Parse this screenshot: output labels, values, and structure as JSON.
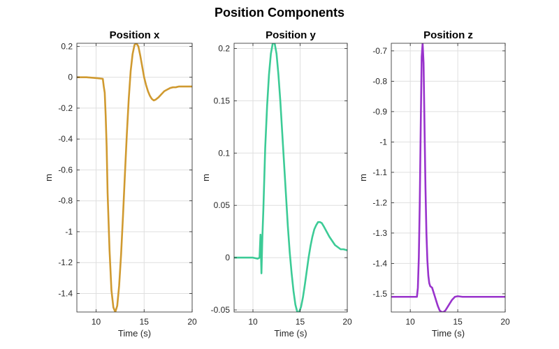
{
  "figure": {
    "title": "Position Components"
  },
  "chart_data": [
    {
      "type": "line",
      "title": "Position x",
      "xlabel": "Time (s)",
      "ylabel": "m",
      "xlim": [
        8,
        20
      ],
      "ylim": [
        -1.52,
        0.22
      ],
      "xticks": [
        10,
        15,
        20
      ],
      "yticks": [
        0.2,
        0,
        -0.2,
        -0.4,
        -0.6,
        -0.8,
        -1,
        -1.2,
        -1.4
      ],
      "ytick_labels": [
        "0.2",
        "0",
        "-0.2",
        "-0.4",
        "-0.6",
        "-0.8",
        "-1",
        "-1.2",
        "-1.4"
      ],
      "grid": true,
      "color": "#D09A30",
      "series": [
        {
          "x": [
            8,
            9,
            10,
            10.7,
            10.8,
            10.9,
            11.0,
            11.1,
            11.2,
            11.4,
            11.6,
            11.8,
            12.0,
            12.2,
            12.4,
            12.6,
            12.8,
            13.0,
            13.2,
            13.4,
            13.6,
            13.8,
            14.0,
            14.2,
            14.4,
            14.6,
            14.8,
            15.0,
            15.2,
            15.4,
            15.6,
            15.8,
            16.0,
            16.2,
            16.5,
            16.8,
            17.1,
            17.4,
            17.7,
            18.0,
            18.3,
            18.6,
            19.0,
            19.5,
            20
          ],
          "y": [
            0.0,
            0.0,
            -0.005,
            -0.01,
            -0.06,
            -0.1,
            -0.25,
            -0.45,
            -0.75,
            -1.12,
            -1.38,
            -1.49,
            -1.52,
            -1.48,
            -1.35,
            -1.15,
            -0.9,
            -0.63,
            -0.37,
            -0.14,
            0.04,
            0.15,
            0.21,
            0.22,
            0.2,
            0.14,
            0.07,
            0.0,
            -0.05,
            -0.09,
            -0.12,
            -0.14,
            -0.15,
            -0.145,
            -0.13,
            -0.11,
            -0.09,
            -0.08,
            -0.07,
            -0.065,
            -0.065,
            -0.06,
            -0.06,
            -0.06,
            -0.06
          ]
        }
      ]
    },
    {
      "type": "line",
      "title": "Position y",
      "xlabel": "Time (s)",
      "ylabel": "m",
      "xlim": [
        8,
        20
      ],
      "ylim": [
        -0.052,
        0.205
      ],
      "xticks": [
        10,
        15,
        20
      ],
      "yticks": [
        0.2,
        0.15,
        0.1,
        0.05,
        0,
        -0.05
      ],
      "ytick_labels": [
        "0.2",
        "0.15",
        "0.1",
        "0.05",
        "0",
        "-0.05"
      ],
      "grid": true,
      "color": "#3CCB96",
      "series": [
        {
          "x": [
            8,
            9,
            10,
            10.5,
            10.7,
            10.8,
            10.9,
            11.0,
            11.1,
            11.2,
            11.3,
            11.5,
            11.7,
            11.9,
            12.1,
            12.3,
            12.5,
            12.7,
            12.9,
            13.1,
            13.3,
            13.5,
            13.7,
            13.9,
            14.1,
            14.3,
            14.5,
            14.7,
            14.9,
            15.1,
            15.3,
            15.5,
            15.7,
            15.9,
            16.1,
            16.3,
            16.5,
            16.7,
            16.9,
            17.1,
            17.3,
            17.5,
            17.8,
            18.1,
            18.4,
            18.7,
            19.0,
            19.3,
            19.6,
            20
          ],
          "y": [
            0.0,
            0.0,
            0.0,
            -0.001,
            0.0,
            0.022,
            -0.015,
            0.02,
            0.045,
            0.075,
            0.105,
            0.145,
            0.175,
            0.195,
            0.205,
            0.205,
            0.195,
            0.175,
            0.15,
            0.12,
            0.09,
            0.06,
            0.03,
            0.005,
            -0.015,
            -0.032,
            -0.045,
            -0.052,
            -0.052,
            -0.047,
            -0.038,
            -0.026,
            -0.013,
            0.0,
            0.011,
            0.02,
            0.027,
            0.031,
            0.034,
            0.034,
            0.033,
            0.03,
            0.025,
            0.02,
            0.016,
            0.012,
            0.01,
            0.008,
            0.008,
            0.007
          ]
        }
      ]
    },
    {
      "type": "line",
      "title": "Position z",
      "xlabel": "Time (s)",
      "ylabel": "m",
      "xlim": [
        8,
        20
      ],
      "ylim": [
        -1.56,
        -0.675
      ],
      "xticks": [
        10,
        15,
        20
      ],
      "yticks": [
        -0.7,
        -0.8,
        -0.9,
        -1,
        -1.1,
        -1.2,
        -1.3,
        -1.4,
        -1.5
      ],
      "ytick_labels": [
        "-0.7",
        "-0.8",
        "-0.9",
        "-1",
        "-1.1",
        "-1.2",
        "-1.3",
        "-1.4",
        "-1.5"
      ],
      "grid": true,
      "color": "#9933CC",
      "series": [
        {
          "x": [
            8,
            9,
            10,
            10.7,
            10.8,
            10.9,
            11.0,
            11.1,
            11.2,
            11.3,
            11.4,
            11.5,
            11.6,
            11.7,
            11.8,
            11.9,
            12.0,
            12.1,
            12.3,
            12.5,
            12.7,
            12.9,
            13.1,
            13.3,
            13.5,
            13.7,
            13.9,
            14.1,
            14.4,
            14.7,
            15.0,
            15.5,
            16,
            17,
            18,
            19,
            20
          ],
          "y": [
            -1.51,
            -1.51,
            -1.51,
            -1.51,
            -1.48,
            -1.38,
            -1.2,
            -0.95,
            -0.72,
            -0.675,
            -0.74,
            -0.95,
            -1.15,
            -1.3,
            -1.39,
            -1.44,
            -1.465,
            -1.475,
            -1.48,
            -1.5,
            -1.52,
            -1.54,
            -1.555,
            -1.56,
            -1.56,
            -1.555,
            -1.545,
            -1.535,
            -1.52,
            -1.51,
            -1.508,
            -1.51,
            -1.51,
            -1.51,
            -1.51,
            -1.51,
            -1.51
          ]
        }
      ]
    }
  ]
}
